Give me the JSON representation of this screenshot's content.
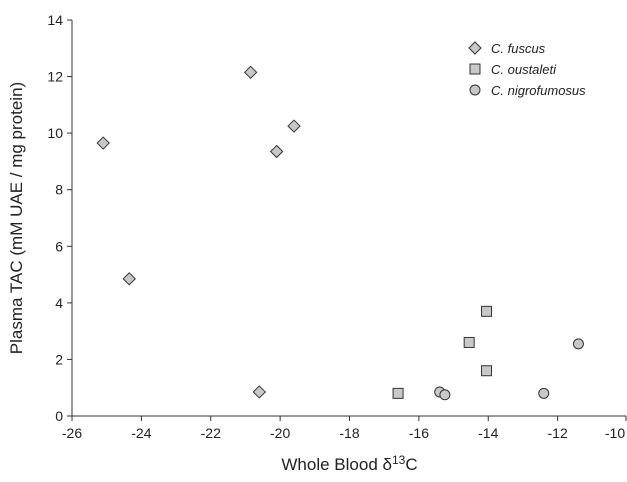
{
  "chart_data": {
    "type": "scatter",
    "title": "",
    "xlabel": "Whole Blood δ13C",
    "xlabel_parts": {
      "prefix": "Whole Blood δ",
      "superscript": "13",
      "suffix": "C"
    },
    "ylabel": "Plasma TAC (mM UAE / mg protein)",
    "xlim": [
      -26,
      -10
    ],
    "ylim": [
      0,
      14
    ],
    "xticks": [
      -26,
      -24,
      -22,
      -20,
      -18,
      -16,
      -14,
      -12,
      -10
    ],
    "yticks": [
      0,
      2,
      4,
      6,
      8,
      10,
      12,
      14
    ],
    "grid": false,
    "legend_position": "top-right",
    "series": [
      {
        "name": "C. fuscus",
        "marker": "diamond",
        "color": "#c8c8c8",
        "points": [
          {
            "x": -25.1,
            "y": 9.65
          },
          {
            "x": -24.35,
            "y": 4.85
          },
          {
            "x": -20.85,
            "y": 12.15
          },
          {
            "x": -20.1,
            "y": 9.35
          },
          {
            "x": -19.6,
            "y": 10.25
          },
          {
            "x": -20.6,
            "y": 0.85
          }
        ]
      },
      {
        "name": "C. oustaleti",
        "marker": "square",
        "color": "#c8c8c8",
        "points": [
          {
            "x": -16.6,
            "y": 0.8
          },
          {
            "x": -14.55,
            "y": 2.6
          },
          {
            "x": -14.05,
            "y": 3.7
          },
          {
            "x": -14.05,
            "y": 1.6
          }
        ]
      },
      {
        "name": "C. nigrofumosus",
        "marker": "circle",
        "color": "#c8c8c8",
        "points": [
          {
            "x": -15.4,
            "y": 0.85
          },
          {
            "x": -15.25,
            "y": 0.75
          },
          {
            "x": -12.4,
            "y": 0.8
          },
          {
            "x": -11.4,
            "y": 2.55
          }
        ]
      }
    ]
  }
}
